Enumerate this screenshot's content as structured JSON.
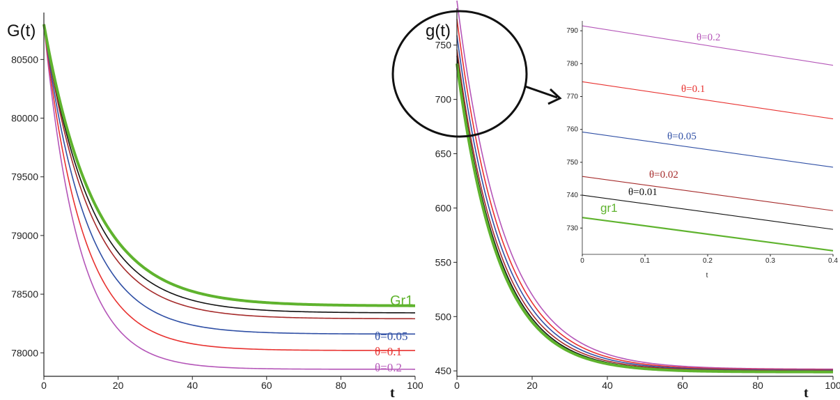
{
  "chart_data": [
    {
      "type": "line",
      "ylabel": "G(t)",
      "xlabel": "t",
      "xlim": [
        0,
        100
      ],
      "ylim": [
        77800,
        80900
      ],
      "x_ticks": [
        "0",
        "20",
        "40",
        "60",
        "80",
        "100"
      ],
      "y_ticks": [
        "78000",
        "78500",
        "79000",
        "79500",
        "80000",
        "80500"
      ],
      "start_value": 80800,
      "series": [
        {
          "name": "Gr1",
          "color": "#5fb32e",
          "final": 78400,
          "tau": 13.5,
          "width": 4
        },
        {
          "name": "",
          "color": "#111111",
          "final": 78340,
          "tau": 12.8,
          "width": 1.6
        },
        {
          "name": "",
          "color": "#a52a2a",
          "final": 78290,
          "tau": 12.2,
          "width": 1.6
        },
        {
          "name": "θ=0.05",
          "color": "#2f4fa5",
          "final": 78160,
          "tau": 11.3,
          "width": 1.6
        },
        {
          "name": "θ=0.1",
          "color": "#e8312f",
          "final": 78020,
          "tau": 10.3,
          "width": 1.6
        },
        {
          "name": "θ=0.2",
          "color": "#b455b8",
          "final": 77860,
          "tau": 9.3,
          "width": 1.6
        }
      ]
    },
    {
      "type": "line",
      "ylabel": "g(t)",
      "xlabel": "t",
      "xlim": [
        0,
        100
      ],
      "ylim": [
        445,
        780
      ],
      "x_ticks": [
        "0",
        "20",
        "40",
        "60",
        "80",
        "100"
      ],
      "y_ticks": [
        "450",
        "500",
        "550",
        "600",
        "650",
        "700",
        "750"
      ],
      "series": [
        {
          "name": "gr1",
          "color": "#5fb32e",
          "start": 733,
          "final": 449,
          "tau": 11.0,
          "width": 4
        },
        {
          "name": "θ=0.01",
          "color": "#111111",
          "start": 740,
          "final": 449.5,
          "tau": 11.2,
          "width": 1.6
        },
        {
          "name": "θ=0.02",
          "color": "#a52a2a",
          "start": 746,
          "final": 450,
          "tau": 11.5,
          "width": 1.6
        },
        {
          "name": "θ=0.05",
          "color": "#2f4fa5",
          "start": 759,
          "final": 450.5,
          "tau": 11.8,
          "width": 1.6
        },
        {
          "name": "θ=0.1",
          "color": "#e8312f",
          "start": 774,
          "final": 451,
          "tau": 12.1,
          "width": 1.6
        },
        {
          "name": "θ=0.2",
          "color": "#b455b8",
          "start": 791,
          "final": 451.5,
          "tau": 12.5,
          "width": 1.6
        }
      ]
    },
    {
      "type": "line",
      "inset": true,
      "xlabel": "t",
      "xlim": [
        0,
        0.4
      ],
      "ylim": [
        722,
        793
      ],
      "x_ticks": [
        "0",
        "0.1",
        "0.2",
        "0.3",
        "0.4"
      ],
      "y_ticks": [
        "730",
        "740",
        "750",
        "760",
        "770",
        "780",
        "790"
      ],
      "series": [
        {
          "name": "θ=0.2",
          "color": "#b455b8",
          "x": [
            0,
            0.4
          ],
          "y": [
            791.5,
            779.5
          ]
        },
        {
          "name": "θ=0.1",
          "color": "#e8312f",
          "x": [
            0,
            0.4
          ],
          "y": [
            774.5,
            763.2
          ]
        },
        {
          "name": "θ=0.05",
          "color": "#2f4fa5",
          "x": [
            0,
            0.4
          ],
          "y": [
            759.2,
            748.5
          ]
        },
        {
          "name": "θ=0.02",
          "color": "#a52a2a",
          "x": [
            0,
            0.4
          ],
          "y": [
            745.7,
            735.3
          ]
        },
        {
          "name": "θ=0.01",
          "color": "#111111",
          "x": [
            0,
            0.4
          ],
          "y": [
            740.0,
            729.6
          ]
        },
        {
          "name": "gr1",
          "color": "#5fb32e",
          "x": [
            0,
            0.4
          ],
          "y": [
            733.2,
            723.1
          ]
        }
      ]
    }
  ]
}
